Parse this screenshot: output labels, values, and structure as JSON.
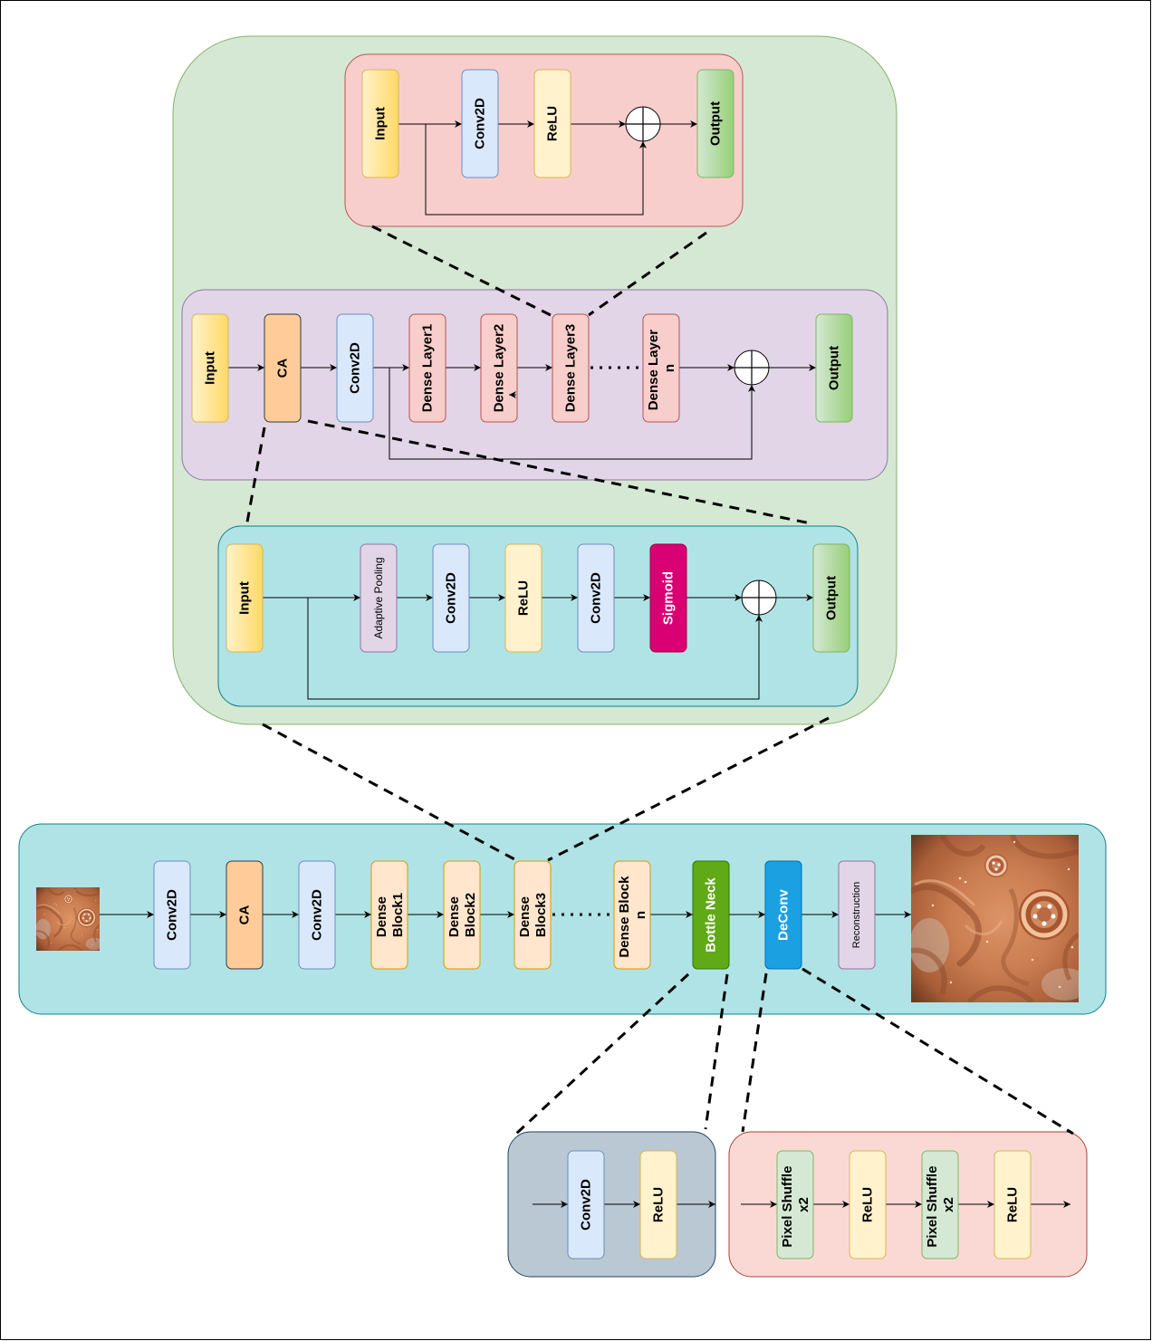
{
  "top_panel": {
    "input": "Input",
    "conv": "Conv2D",
    "relu": "ReLU",
    "output": "Output"
  },
  "middle_panel": {
    "input": "Input",
    "ca": "CA",
    "conv": "Conv2D",
    "layer1": "Dense Layer1",
    "layer2": "Dense Layer2",
    "layer3": "Dense Layer3",
    "layer_n": [
      "Dense Layer",
      "n"
    ],
    "output": "Output"
  },
  "ca_panel": {
    "input": "Input",
    "pooling": "Adaptive Pooling",
    "conv1": "Conv2D",
    "relu": "ReLU",
    "conv2": "Conv2D",
    "sigmoid": "Sigmoid",
    "output": "Output"
  },
  "main_panel": {
    "conv1": "Conv2D",
    "ca": "CA",
    "conv2": "Conv2D",
    "block1": [
      "Dense",
      "Block1"
    ],
    "block2": [
      "Dense",
      "Block2"
    ],
    "block3": [
      "Dense",
      "Block3"
    ],
    "block_n": [
      "Dense Block",
      "n"
    ],
    "bottleneck": "Bottle Neck",
    "deconv": "DeConv",
    "reconstruction": "Reconstruction"
  },
  "bottleneck_panel": {
    "conv": "Conv2D",
    "relu": "ReLU"
  },
  "deconv_panel": {
    "shuffle1": [
      "Pixel Shuffle",
      "x2"
    ],
    "relu1": "ReLU",
    "shuffle2": [
      "Pixel Shuffle",
      "x2"
    ],
    "relu2": "ReLU"
  },
  "colors": {
    "input_light": "#fff2cc",
    "input_dark": "#ffd966",
    "input_stroke": "#d6b656",
    "output_light": "#d5e8d4",
    "output_dark": "#97d077",
    "output_stroke": "#82b366",
    "conv_fill": "#dae8fc",
    "conv_stroke": "#6c8ebf",
    "relu_fill": "#fff2cc",
    "relu_stroke": "#d6b656",
    "ca_fill": "#ffcc99",
    "ca_stroke": "#36393d",
    "dense_layer_fill": "#f8cecc",
    "dense_layer_stroke": "#b85450",
    "dense_block_fill": "#ffe6cc",
    "dense_block_stroke": "#d79b00",
    "lilac_fill": "#e1d5e7",
    "lilac_stroke": "#9673a6",
    "sigmoid_fill": "#d80073",
    "sigmoid_stroke": "#a50040",
    "bottleneck_fill": "#60a917",
    "bottleneck_stroke": "#2d7600",
    "deconv_fill": "#1ba1e2",
    "deconv_stroke": "#006eaf",
    "shuffle_fill": "#d5e8d4",
    "shuffle_stroke": "#82b366",
    "green_panel_fill": "#d5e8d4",
    "green_panel_stroke": "#82b366",
    "red_panel_fill": "#f8cecc",
    "red_panel_stroke": "#b85450",
    "purple_panel_fill": "#e1d5e7",
    "purple_panel_stroke": "#9673a6",
    "cyan_panel_fill": "#b0e3e6",
    "cyan_panel_stroke": "#0e8088",
    "gray_panel_fill": "#bac8d3",
    "gray_panel_stroke": "#23445d",
    "pink_panel_fill": "#fad9d5",
    "pink_panel_stroke": "#ae4132"
  }
}
